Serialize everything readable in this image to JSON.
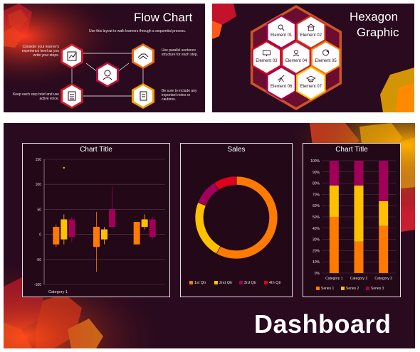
{
  "colors": {
    "background": "#2a0a1e",
    "orange": "#ff7a00",
    "yellow": "#ffc000",
    "magenta": "#a1005a",
    "red": "#e0001b",
    "white": "#ffffff"
  },
  "flow_chart": {
    "title": "Flow Chart",
    "subtitle": "Use this layout to walk learners through a sequential process.",
    "note_left_top": "Consider your learner's experience level as you write your steps.",
    "note_left_bottom": "Keep each step brief and use active voice.",
    "note_right_top": "Use parallel sentence structure for each step.",
    "note_right_bottom": "Be sure to include any important notes or cautions.",
    "icons": [
      "chart-icon",
      "handshake-icon",
      "person-headset-icon",
      "list-icon",
      "document-icon"
    ]
  },
  "hexagon_graphic": {
    "title_line1": "Hexagon",
    "title_line2": "Graphic",
    "elements": [
      {
        "label": "Element 01",
        "icon": "magnifier-icon"
      },
      {
        "label": "Element 02",
        "icon": "house-icon"
      },
      {
        "label": "Element 03",
        "icon": "monitor-icon"
      },
      {
        "label": "Element 04",
        "icon": "person-icon"
      },
      {
        "label": "Element 05",
        "icon": "recycle-icon"
      },
      {
        "label": "Element 06",
        "icon": "telescope-icon"
      },
      {
        "label": "Element 07",
        "icon": "graduation-cap-icon"
      }
    ]
  },
  "dashboard": {
    "title": "Dashboard"
  },
  "chart_data": [
    {
      "type": "bar",
      "subtype": "stock / box",
      "title": "Chart Title",
      "categories": [
        "Category 1"
      ],
      "y_ticks": [
        "150",
        "100",
        "50",
        "0",
        "-50",
        "-100"
      ],
      "ylim": [
        -100,
        150
      ],
      "grid": true,
      "groups": [
        {
          "boxes": [
            {
              "color": "orange",
              "low": -25,
              "q1": -20,
              "q3": 15,
              "high": 20
            },
            {
              "color": "yellow",
              "low": -20,
              "q1": -10,
              "q3": 30,
              "high": 40
            },
            {
              "color": "magenta",
              "low": -15,
              "q1": -5,
              "q3": 30,
              "high": 35
            }
          ]
        },
        {
          "boxes": [
            {
              "color": "orange",
              "low": -75,
              "q1": -25,
              "q3": 15,
              "high": 45
            },
            {
              "color": "yellow",
              "low": -20,
              "q1": -10,
              "q3": 10,
              "high": 15
            },
            {
              "color": "magenta",
              "low": 15,
              "q1": 15,
              "q3": 50,
              "high": 95
            }
          ]
        },
        {
          "boxes": [
            {
              "color": "orange",
              "low": -20,
              "q1": -20,
              "q3": 25,
              "high": 25
            },
            {
              "color": "yellow",
              "low": 10,
              "q1": 15,
              "q3": 30,
              "high": 40
            },
            {
              "color": "magenta",
              "low": -10,
              "q1": -5,
              "q3": 30,
              "high": 35
            }
          ]
        }
      ],
      "outlier": {
        "group": 0,
        "box": 1,
        "value": 133
      }
    },
    {
      "type": "pie",
      "subtype": "doughnut",
      "title": "Sales",
      "categories": [
        "1st Qtr",
        "2nd Qtr",
        "3rd Qtr",
        "4th Qtr"
      ],
      "values": [
        58,
        23,
        10,
        9
      ],
      "colors": [
        "#ff7a00",
        "#ffc000",
        "#a1005a",
        "#e0001b"
      ],
      "legend": "bottom"
    },
    {
      "type": "bar",
      "subtype": "100% stacked column",
      "title": "Chart Title",
      "categories": [
        "Category 1",
        "Category 2",
        "Category 3"
      ],
      "y_ticks": [
        "100%",
        "90%",
        "80%",
        "70%",
        "60%",
        "50%",
        "40%",
        "30%",
        "20%",
        "10%",
        "0%"
      ],
      "ylim": [
        0,
        100
      ],
      "series": [
        {
          "name": "Series 1",
          "color": "#ff7a00",
          "values": [
            50,
            28,
            42
          ]
        },
        {
          "name": "Series 2",
          "color": "#ffc000",
          "values": [
            28,
            50,
            22
          ]
        },
        {
          "name": "Series 3",
          "color": "#a1005a",
          "values": [
            22,
            22,
            36
          ]
        }
      ],
      "legend": "bottom"
    }
  ]
}
